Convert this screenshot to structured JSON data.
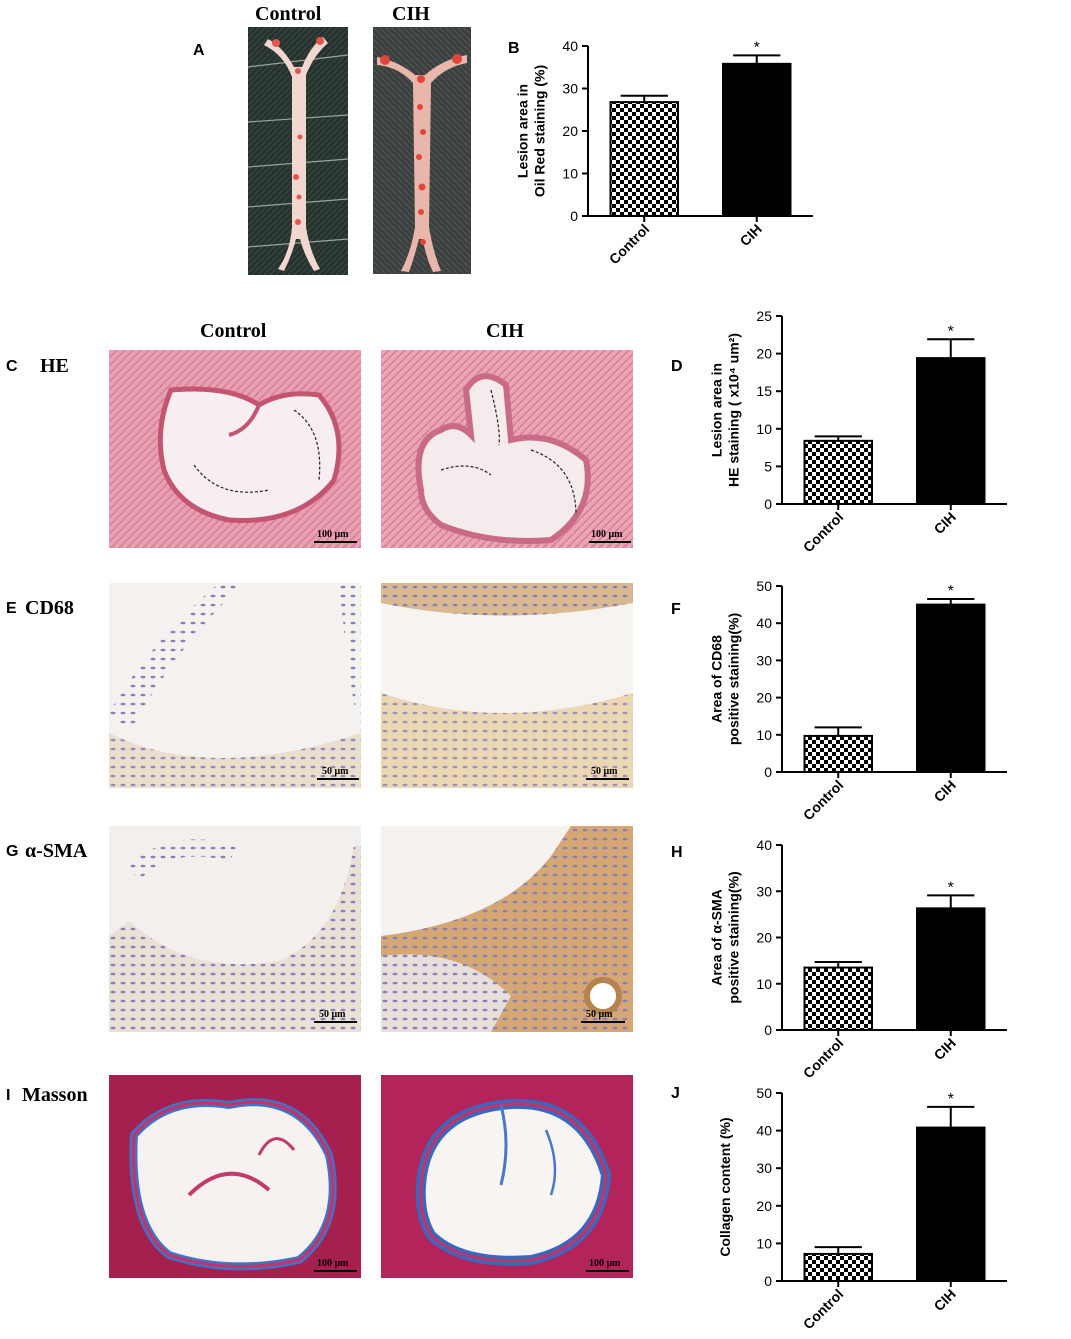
{
  "row_titles": {
    "control": "Control",
    "cih": "CIH"
  },
  "panels": {
    "A": "A",
    "B": "B",
    "C": "C",
    "D": "D",
    "E": "E",
    "F": "F",
    "G": "G",
    "H": "H",
    "I": "I",
    "J": "J"
  },
  "stain_labels": {
    "he": "HE",
    "cd68": "CD68",
    "sma": "α-SMA",
    "masson": "Masson"
  },
  "scale_bars": {
    "he_control": "100 μm",
    "he_cih": "100 μm",
    "cd68_control": "50 μm",
    "cd68_cih": "50 μm",
    "sma_control": "50 μm",
    "sma_cih": "50 μm",
    "masson_control": "100 μm",
    "masson_cih": "100 μm"
  },
  "chart_data": [
    {
      "id": "B",
      "type": "bar",
      "categories": [
        "Control",
        "CIH"
      ],
      "values": [
        26.8,
        35.8
      ],
      "errors": [
        1.5,
        2.0
      ],
      "significance": [
        "",
        "*"
      ],
      "ylabel_lines": [
        "Lesion area in",
        "Oil Red staining (%)"
      ],
      "ylim": [
        0,
        40
      ],
      "yticks": [
        0,
        10,
        20,
        30,
        40
      ]
    },
    {
      "id": "D",
      "type": "bar",
      "categories": [
        "Control",
        "CIH"
      ],
      "values": [
        8.4,
        19.4
      ],
      "errors": [
        0.6,
        2.5
      ],
      "significance": [
        "",
        "*"
      ],
      "ylabel_lines": [
        "Lesion area in",
        "HE staining ( x10⁴ um²)"
      ],
      "ylim": [
        0,
        25
      ],
      "yticks": [
        0,
        5,
        10,
        15,
        20,
        25
      ]
    },
    {
      "id": "F",
      "type": "bar",
      "categories": [
        "Control",
        "CIH"
      ],
      "values": [
        9.7,
        45.0
      ],
      "errors": [
        2.3,
        1.5
      ],
      "significance": [
        "",
        "*"
      ],
      "ylabel_lines": [
        "Area of CD68",
        "positive staining(%)"
      ],
      "ylim": [
        0,
        50
      ],
      "yticks": [
        0,
        10,
        20,
        30,
        40,
        50
      ]
    },
    {
      "id": "H",
      "type": "bar",
      "categories": [
        "Control",
        "CIH"
      ],
      "values": [
        13.5,
        26.3
      ],
      "errors": [
        1.2,
        2.8
      ],
      "significance": [
        "",
        "*"
      ],
      "ylabel_lines": [
        "Area of α-SMA",
        "positive staining(%)"
      ],
      "ylim": [
        0,
        40
      ],
      "yticks": [
        0,
        10,
        20,
        30,
        40
      ]
    },
    {
      "id": "J",
      "type": "bar",
      "categories": [
        "Control",
        "CIH"
      ],
      "values": [
        7.2,
        40.8
      ],
      "errors": [
        1.8,
        5.5
      ],
      "significance": [
        "",
        "*"
      ],
      "ylabel_lines": [
        "Collagen content (%)"
      ],
      "ylim": [
        0,
        50
      ],
      "yticks": [
        0,
        10,
        20,
        30,
        40,
        50
      ]
    }
  ]
}
